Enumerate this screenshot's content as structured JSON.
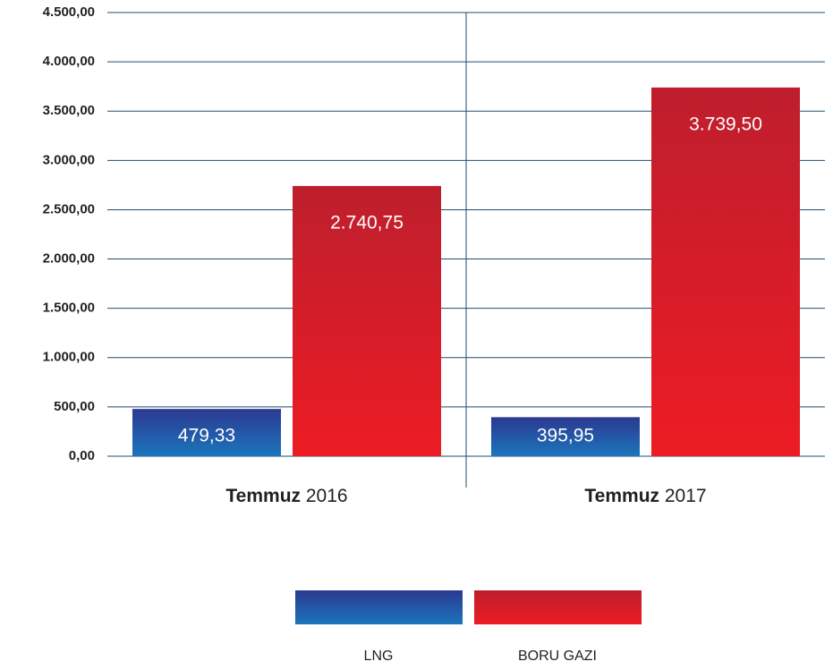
{
  "chart_data": {
    "type": "bar",
    "categories": [
      "Temmuz 2016",
      "Temmuz 2017"
    ],
    "series": [
      {
        "name": "LNG",
        "color": "#2b3990",
        "values": [
          479.33,
          395.95
        ],
        "value_labels": [
          "479,33",
          "395,95"
        ]
      },
      {
        "name": "BORU GAZI",
        "color": "#be1e2d",
        "values": [
          2740.75,
          3739.5
        ],
        "value_labels": [
          "2.740,75",
          "3.739,50"
        ]
      }
    ],
    "ylim": [
      0,
      4500
    ],
    "yticks": [
      {
        "value": 0,
        "label": "0,00"
      },
      {
        "value": 500,
        "label": "500,00"
      },
      {
        "value": 1000,
        "label": "1.000,00"
      },
      {
        "value": 1500,
        "label": "1.500,00"
      },
      {
        "value": 2000,
        "label": "2.000,00"
      },
      {
        "value": 2500,
        "label": "2.500,00"
      },
      {
        "value": 3000,
        "label": "3.000,00"
      },
      {
        "value": 3500,
        "label": "3.500,00"
      },
      {
        "value": 4000,
        "label": "4.000,00"
      },
      {
        "value": 4500,
        "label": "4.500,00"
      }
    ],
    "grid": true,
    "legend": "bottom"
  }
}
